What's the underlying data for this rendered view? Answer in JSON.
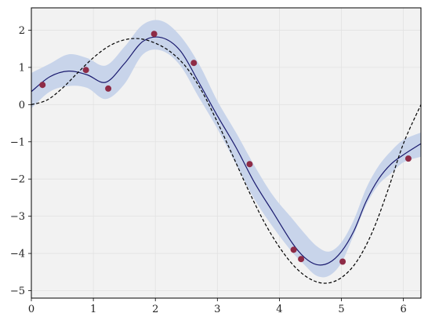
{
  "chart_data": {
    "type": "line",
    "title": "",
    "xlabel": "",
    "ylabel": "",
    "xlim": [
      0,
      6.283
    ],
    "ylim": [
      -5.2,
      2.6
    ],
    "grid": true,
    "legend": "none",
    "x_ticks": [
      0,
      1,
      2,
      3,
      4,
      5,
      6
    ],
    "y_ticks": [
      2,
      1,
      0,
      -1,
      -2,
      -3,
      -4,
      -5
    ],
    "x_tick_labels": [
      "0",
      "1",
      "2",
      "3",
      "4",
      "5",
      "6"
    ],
    "y_tick_labels": [
      "2",
      "1",
      "0",
      "−1",
      "−2",
      "−3",
      "−4",
      "−5"
    ],
    "series": [
      {
        "kind": "band",
        "color": "#c8d4ea",
        "x": [
          0.0,
          0.3,
          0.6,
          0.9,
          1.2,
          1.5,
          1.8,
          2.1,
          2.4,
          2.7,
          3.0,
          3.3,
          3.6,
          3.9,
          4.2,
          4.4,
          4.6,
          4.8,
          5.0,
          5.2,
          5.4,
          5.6,
          5.8,
          6.0,
          6.283
        ],
        "lower": [
          -0.1,
          0.35,
          0.5,
          0.45,
          0.15,
          0.55,
          1.35,
          1.45,
          1.05,
          0.2,
          -0.65,
          -1.6,
          -2.55,
          -3.3,
          -3.95,
          -4.3,
          -4.6,
          -4.6,
          -4.25,
          -3.5,
          -2.7,
          -2.15,
          -1.85,
          -1.55,
          -1.4
        ],
        "upper": [
          0.85,
          1.1,
          1.35,
          1.25,
          1.05,
          1.55,
          2.15,
          2.25,
          1.85,
          1.1,
          0.1,
          -0.75,
          -1.65,
          -2.45,
          -3.05,
          -3.45,
          -3.8,
          -3.95,
          -3.7,
          -3.1,
          -2.25,
          -1.65,
          -1.25,
          -0.95,
          -0.75
        ]
      },
      {
        "kind": "line",
        "color": "#1a1a6e",
        "dashed": false,
        "x": [
          0.0,
          0.3,
          0.6,
          0.9,
          1.2,
          1.5,
          1.8,
          2.1,
          2.4,
          2.7,
          3.0,
          3.3,
          3.6,
          3.9,
          4.2,
          4.4,
          4.6,
          4.8,
          5.0,
          5.2,
          5.4,
          5.6,
          5.8,
          6.0,
          6.283
        ],
        "y": [
          0.35,
          0.75,
          0.9,
          0.8,
          0.6,
          1.1,
          1.7,
          1.8,
          1.45,
          0.6,
          -0.3,
          -1.15,
          -2.1,
          -2.9,
          -3.7,
          -4.1,
          -4.3,
          -4.25,
          -3.95,
          -3.4,
          -2.6,
          -2.0,
          -1.6,
          -1.35,
          -1.05
        ]
      },
      {
        "kind": "line",
        "color": "#000000",
        "dashed": true,
        "x": [
          0.0,
          0.25,
          0.5,
          0.75,
          1.0,
          1.25,
          1.5,
          1.75,
          2.0,
          2.25,
          2.5,
          2.75,
          3.0,
          3.25,
          3.5,
          3.75,
          4.0,
          4.25,
          4.5,
          4.75,
          5.0,
          5.25,
          5.5,
          5.75,
          6.0,
          6.283
        ],
        "y": [
          0.0,
          0.12,
          0.44,
          0.86,
          1.26,
          1.57,
          1.74,
          1.77,
          1.65,
          1.41,
          1.0,
          0.36,
          -0.47,
          -1.38,
          -2.3,
          -3.14,
          -3.83,
          -4.36,
          -4.69,
          -4.8,
          -4.65,
          -4.21,
          -3.42,
          -2.3,
          -1.05,
          0.0
        ]
      },
      {
        "kind": "scatter",
        "color": "#8e2b46",
        "x": [
          0.18,
          0.88,
          1.24,
          1.98,
          2.62,
          3.52,
          4.23,
          4.35,
          5.02,
          6.08
        ],
        "y": [
          0.53,
          0.93,
          0.43,
          1.9,
          1.12,
          -1.6,
          -3.9,
          -4.15,
          -4.22,
          -1.45
        ]
      }
    ]
  }
}
